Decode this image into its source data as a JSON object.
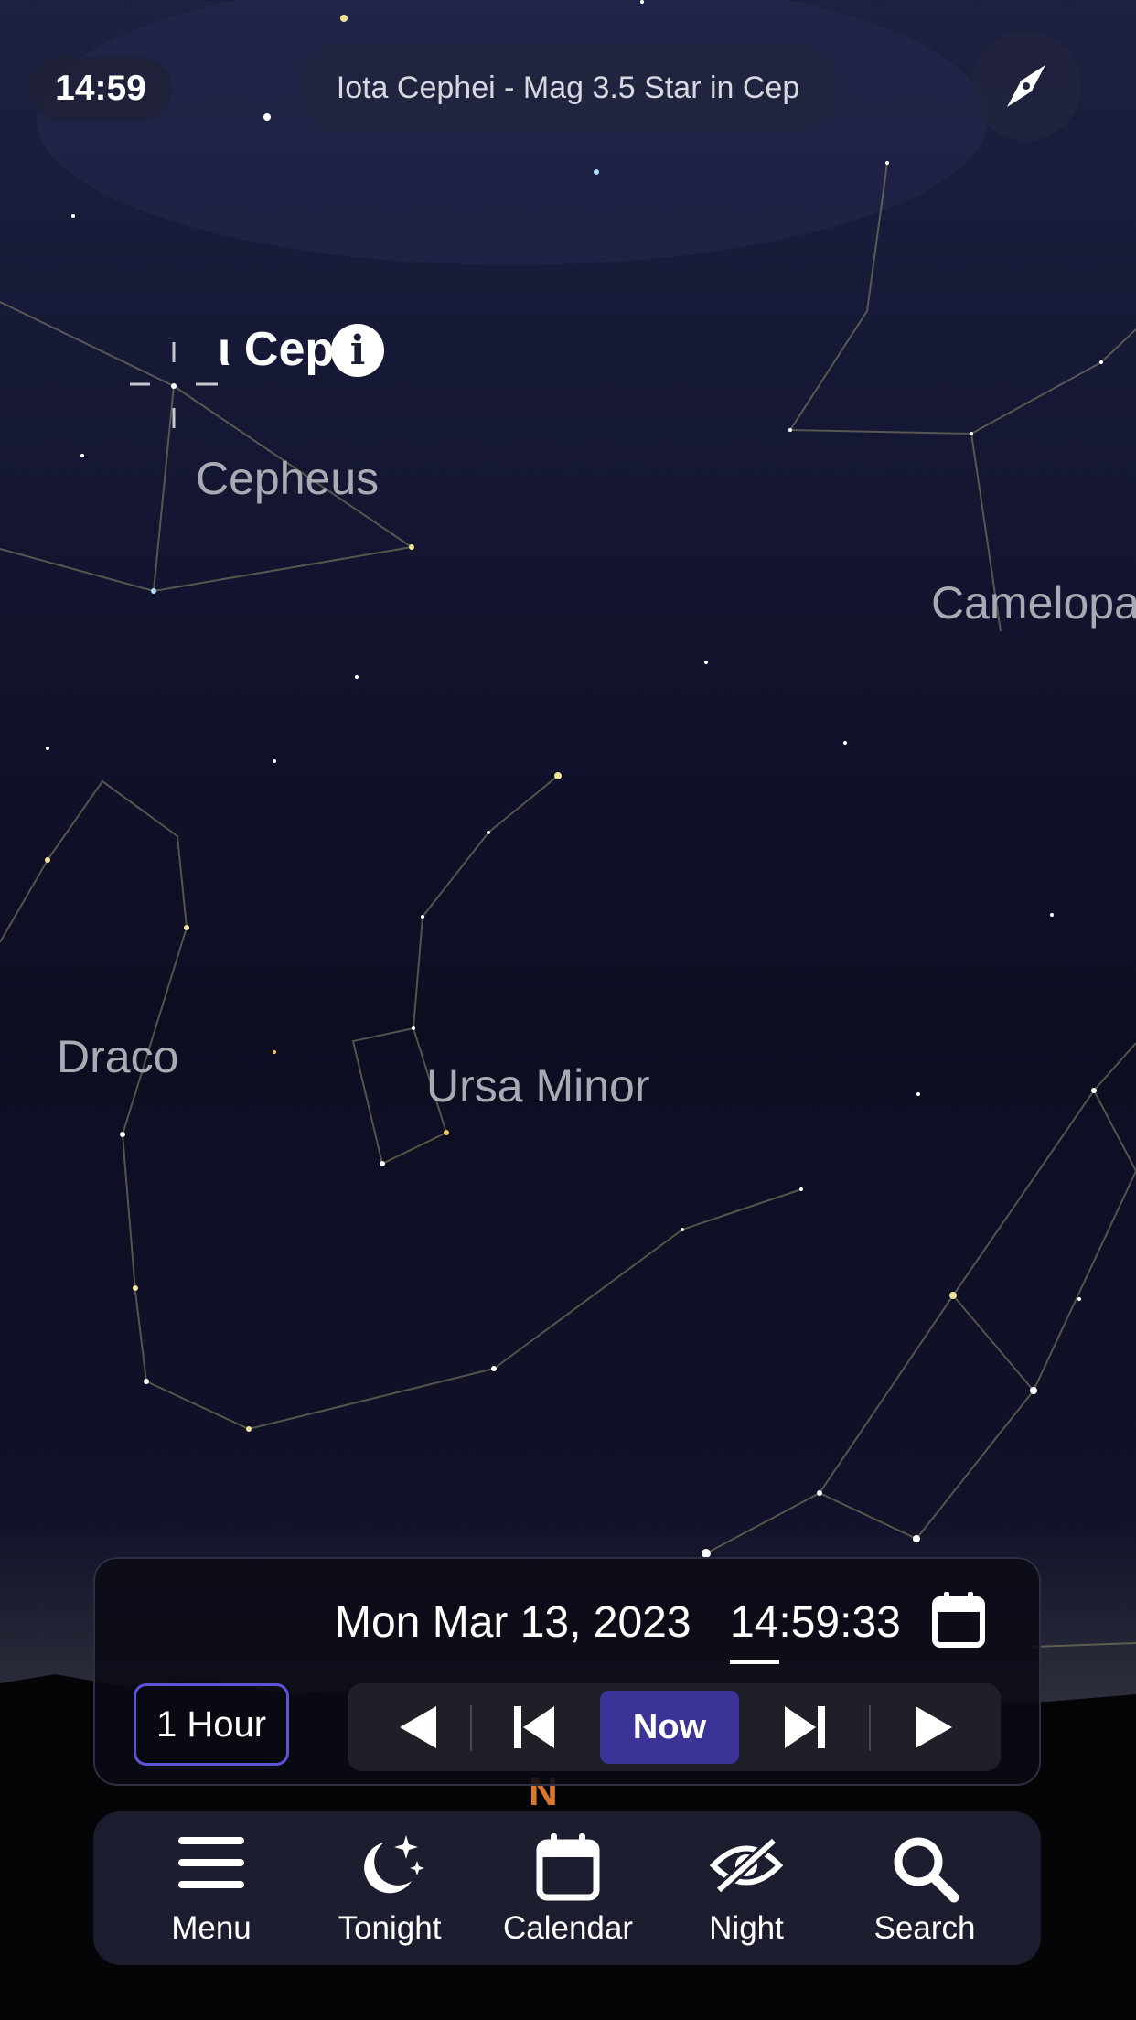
{
  "status_bar": {
    "time": "14:59"
  },
  "selected_object": {
    "description": "Iota Cephei - Mag 3.5 Star in Cep",
    "label": "ι Cep",
    "info_icon": "info-icon"
  },
  "constellations": [
    {
      "name": "Cepheus"
    },
    {
      "name": "Camelopa"
    },
    {
      "name": "Draco"
    },
    {
      "name": "Ursa Minor"
    }
  ],
  "compass": {
    "direction_label": "N",
    "icon": "compass-icon"
  },
  "time_panel": {
    "date": "Mon Mar 13, 2023",
    "time": "14:59:33",
    "step": "1 Hour",
    "now_label": "Now"
  },
  "bottom_nav": [
    {
      "label": "Menu",
      "icon": "menu-icon"
    },
    {
      "label": "Tonight",
      "icon": "moon-stars-icon"
    },
    {
      "label": "Calendar",
      "icon": "calendar-icon"
    },
    {
      "label": "Night",
      "icon": "eye-slash-icon"
    },
    {
      "label": "Search",
      "icon": "search-icon"
    }
  ],
  "colors": {
    "accent": "#3b3496",
    "accent_border": "#5b55d6",
    "north": "#d9772c",
    "panel": "#1c1d2e"
  }
}
